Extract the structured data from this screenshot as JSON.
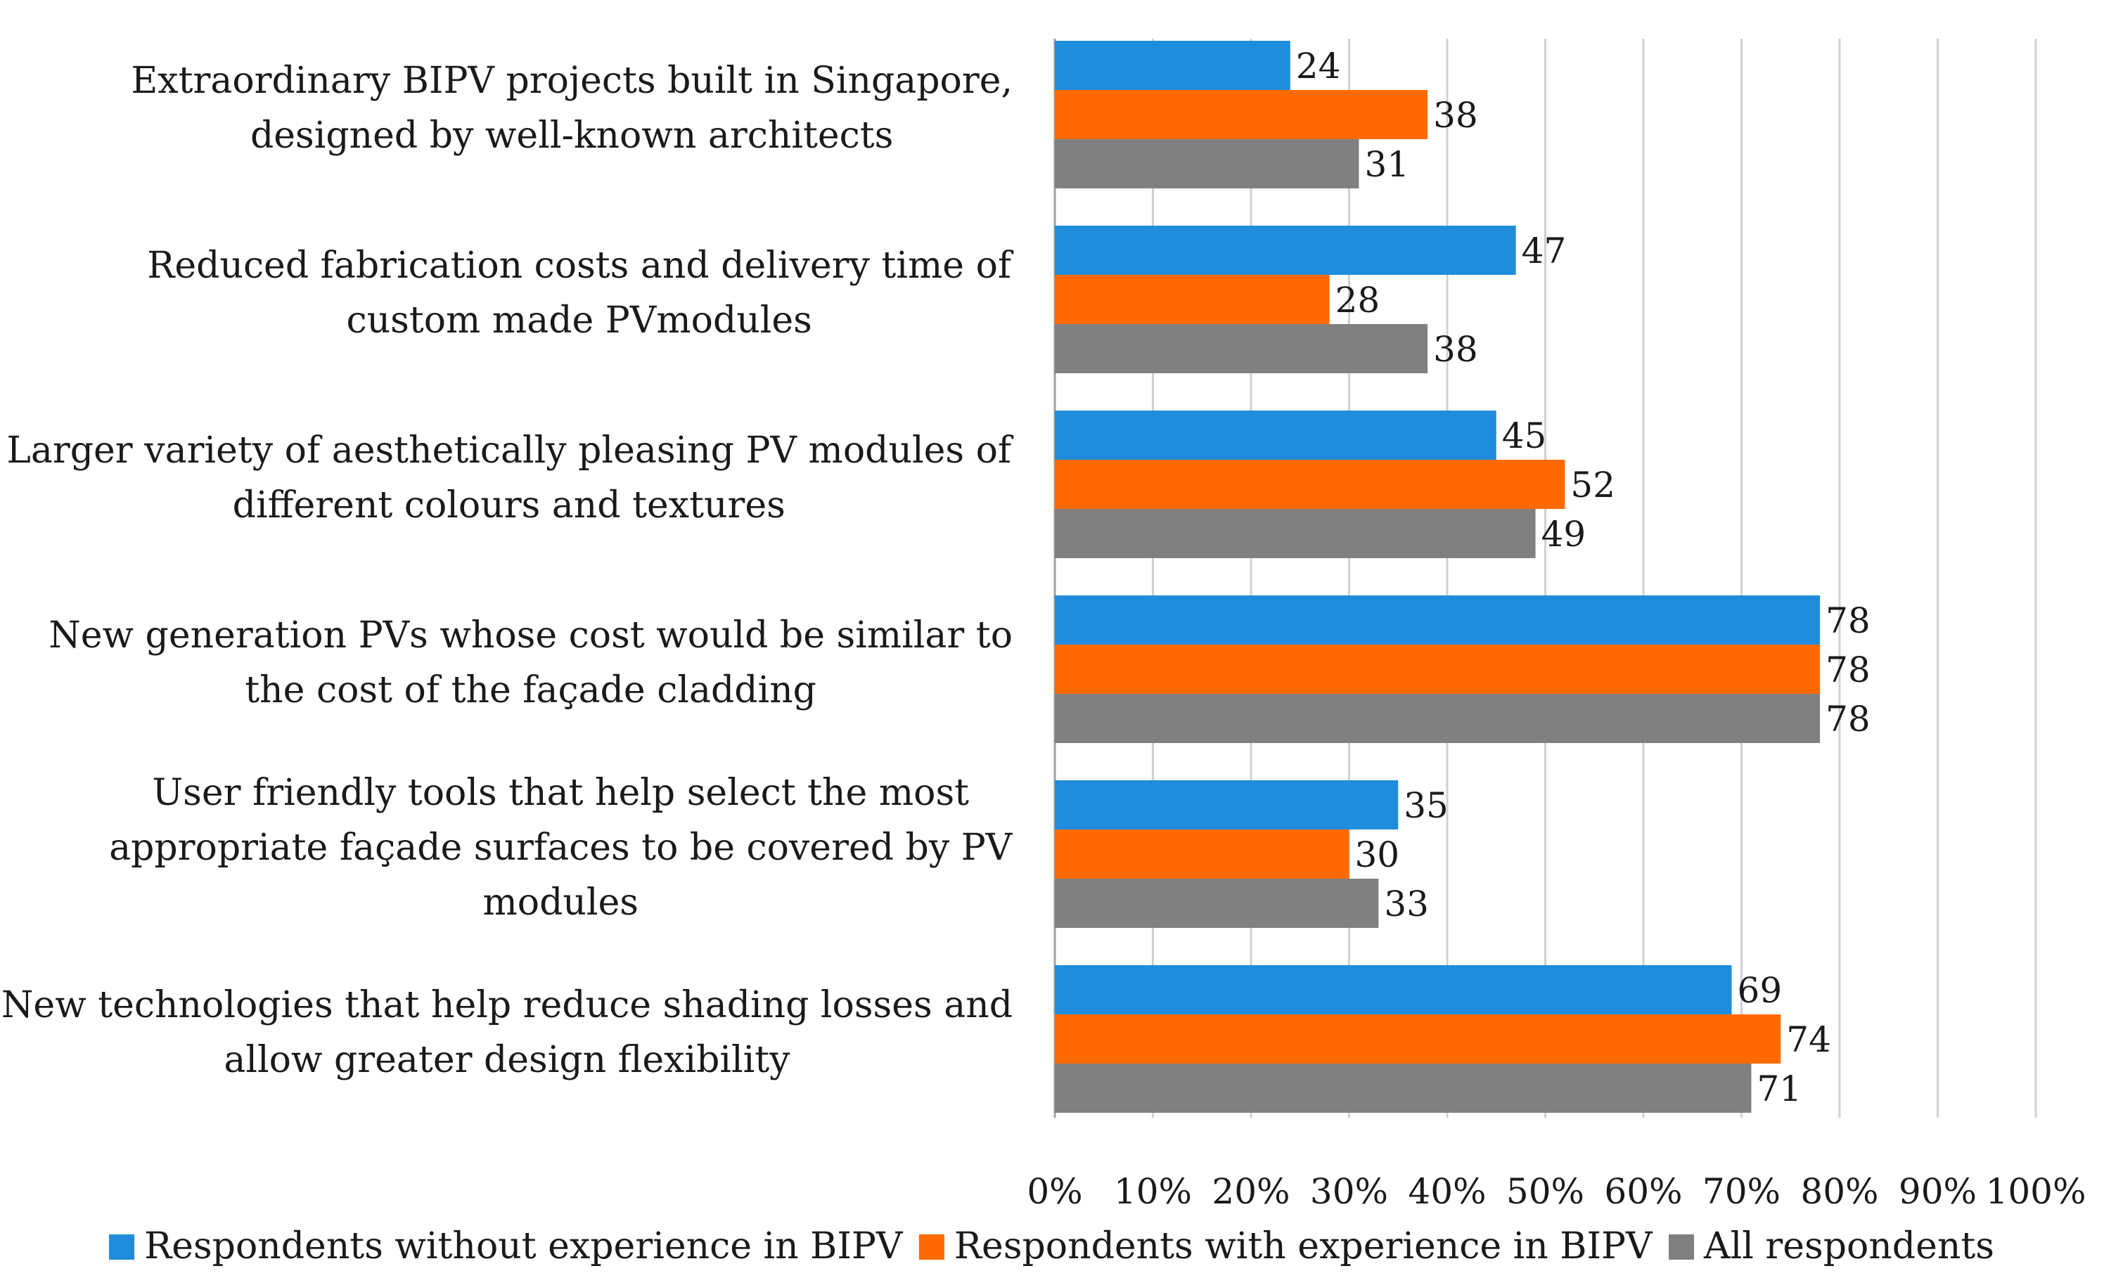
{
  "chart_data": {
    "type": "bar",
    "orientation": "horizontal",
    "title": "",
    "xlabel": "",
    "ylabel": "",
    "xlim": [
      0,
      100
    ],
    "x_ticks": [
      "0%",
      "10%",
      "20%",
      "30%",
      "40%",
      "50%",
      "60%",
      "70%",
      "80%",
      "90%",
      "100%"
    ],
    "grid": true,
    "legend_position": "bottom",
    "categories": [
      [
        "Extraordinary BIPV projects built in Singapore,",
        "designed by well-known architects"
      ],
      [
        "Reduced fabrication costs and delivery time of",
        "custom made PVmodules"
      ],
      [
        "Larger variety of aesthetically pleasing PV modules of",
        "different colours and textures"
      ],
      [
        "New generation PVs whose cost would be similar to",
        "the cost of the façade cladding"
      ],
      [
        "User friendly tools that help select the most",
        "appropriate façade surfaces to be covered by PV",
        "modules"
      ],
      [
        "New technologies that help reduce shading losses and",
        "allow greater design flexibility"
      ]
    ],
    "series": [
      {
        "name": "Respondents without experience in BIPV",
        "color": "#1f8ddb",
        "values": [
          24,
          47,
          45,
          78,
          35,
          69
        ]
      },
      {
        "name": "Respondents with experience in BIPV",
        "color": "#ff6a00",
        "values": [
          38,
          28,
          52,
          78,
          30,
          74
        ]
      },
      {
        "name": "All respondents",
        "color": "#808080",
        "values": [
          31,
          38,
          49,
          78,
          33,
          71
        ]
      }
    ]
  }
}
